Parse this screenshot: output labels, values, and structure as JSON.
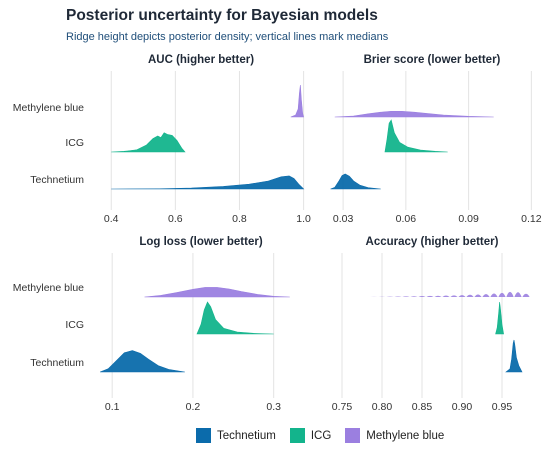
{
  "title": "Posterior uncertainty for Bayesian models",
  "subtitle": "Ridge height depicts posterior density; vertical lines mark medians",
  "legend": {
    "items": [
      {
        "label": "Technetium",
        "color": "#0b6bab"
      },
      {
        "label": "ICG",
        "color": "#13b48c"
      },
      {
        "label": "Methylene blue",
        "color": "#9b7fe0"
      }
    ]
  },
  "chart_data": [
    {
      "type": "ridgeline",
      "title": "AUC (higher better)",
      "xlim": [
        0.34,
        1.02
      ],
      "xticks": [
        0.4,
        0.6,
        0.8,
        1.0
      ],
      "xtick_labels": [
        "0.4",
        "0.6",
        "0.8",
        "1.0"
      ],
      "categories": [
        "Methylene blue",
        "ICG",
        "Technetium"
      ],
      "series": [
        {
          "name": "Methylene blue",
          "color": "#9b7fe0",
          "range": [
            0.96,
            1.0
          ],
          "medians": [
            0.99
          ],
          "density": [
            [
              0.96,
              0
            ],
            [
              0.975,
              0.06
            ],
            [
              0.983,
              0.25
            ],
            [
              0.987,
              0.75
            ],
            [
              0.99,
              1.0
            ],
            [
              0.993,
              0.55
            ],
            [
              0.997,
              0.12
            ],
            [
              1.0,
              0
            ]
          ]
        },
        {
          "name": "ICG",
          "color": "#13b48c",
          "range": [
            0.4,
            0.63
          ],
          "medians": [
            0.56
          ],
          "density": [
            [
              0.4,
              0
            ],
            [
              0.44,
              0.02
            ],
            [
              0.48,
              0.07
            ],
            [
              0.51,
              0.22
            ],
            [
              0.53,
              0.42
            ],
            [
              0.545,
              0.5
            ],
            [
              0.555,
              0.45
            ],
            [
              0.565,
              0.6
            ],
            [
              0.575,
              0.55
            ],
            [
              0.59,
              0.52
            ],
            [
              0.605,
              0.36
            ],
            [
              0.62,
              0.12
            ],
            [
              0.63,
              0
            ]
          ]
        },
        {
          "name": "Technetium",
          "color": "#0b6bab",
          "range": [
            0.4,
            1.0
          ],
          "medians": [
            0.94
          ],
          "density": [
            [
              0.4,
              0
            ],
            [
              0.55,
              0.005
            ],
            [
              0.65,
              0.03
            ],
            [
              0.75,
              0.08
            ],
            [
              0.83,
              0.15
            ],
            [
              0.89,
              0.25
            ],
            [
              0.93,
              0.38
            ],
            [
              0.955,
              0.41
            ],
            [
              0.97,
              0.33
            ],
            [
              0.985,
              0.15
            ],
            [
              1.0,
              0
            ]
          ]
        }
      ]
    },
    {
      "type": "ridgeline",
      "title": "Brier score (lower better)",
      "xlim": [
        0.018,
        0.127
      ],
      "xticks": [
        0.03,
        0.06,
        0.09,
        0.12
      ],
      "xtick_labels": [
        "0.03",
        "0.06",
        "0.09",
        "0.12"
      ],
      "categories": [
        "Methylene blue",
        "ICG",
        "Technetium"
      ],
      "series": [
        {
          "name": "Methylene blue",
          "color": "#9b7fe0",
          "range": [
            0.026,
            0.102
          ],
          "medians": [
            0.055
          ],
          "density": [
            [
              0.026,
              0
            ],
            [
              0.035,
              0.03
            ],
            [
              0.042,
              0.1
            ],
            [
              0.048,
              0.15
            ],
            [
              0.053,
              0.18
            ],
            [
              0.058,
              0.18
            ],
            [
              0.064,
              0.15
            ],
            [
              0.07,
              0.11
            ],
            [
              0.078,
              0.06
            ],
            [
              0.09,
              0.02
            ],
            [
              0.102,
              0
            ]
          ]
        },
        {
          "name": "ICG",
          "color": "#13b48c",
          "range": [
            0.05,
            0.08
          ],
          "medians": [
            0.053
          ],
          "density": [
            [
              0.05,
              0
            ],
            [
              0.051,
              0.4
            ],
            [
              0.052,
              0.9
            ],
            [
              0.053,
              1.0
            ],
            [
              0.0545,
              0.6
            ],
            [
              0.057,
              0.3
            ],
            [
              0.061,
              0.15
            ],
            [
              0.067,
              0.06
            ],
            [
              0.074,
              0.02
            ],
            [
              0.08,
              0
            ]
          ]
        },
        {
          "name": "Technetium",
          "color": "#0b6bab",
          "range": [
            0.024,
            0.048
          ],
          "medians": [
            0.031
          ],
          "density": [
            [
              0.024,
              0
            ],
            [
              0.026,
              0.05
            ],
            [
              0.028,
              0.25
            ],
            [
              0.0295,
              0.42
            ],
            [
              0.031,
              0.47
            ],
            [
              0.033,
              0.4
            ],
            [
              0.035,
              0.25
            ],
            [
              0.038,
              0.12
            ],
            [
              0.042,
              0.04
            ],
            [
              0.048,
              0
            ]
          ]
        }
      ]
    },
    {
      "type": "ridgeline",
      "title": "Log loss (lower better)",
      "xlim": [
        0.075,
        0.345
      ],
      "xticks": [
        0.1,
        0.2,
        0.3
      ],
      "xtick_labels": [
        "0.1",
        "0.2",
        "0.3"
      ],
      "categories": [
        "Methylene blue",
        "ICG",
        "Technetium"
      ],
      "series": [
        {
          "name": "Methylene blue",
          "color": "#9b7fe0",
          "range": [
            0.14,
            0.32
          ],
          "medians": [
            0.225
          ],
          "density": [
            [
              0.14,
              0
            ],
            [
              0.16,
              0.05
            ],
            [
              0.18,
              0.14
            ],
            [
              0.2,
              0.24
            ],
            [
              0.215,
              0.3
            ],
            [
              0.23,
              0.3
            ],
            [
              0.245,
              0.25
            ],
            [
              0.26,
              0.17
            ],
            [
              0.28,
              0.08
            ],
            [
              0.3,
              0.02
            ],
            [
              0.32,
              0
            ]
          ]
        },
        {
          "name": "ICG",
          "color": "#13b48c",
          "range": [
            0.205,
            0.3
          ],
          "medians": [
            0.22
          ],
          "density": [
            [
              0.205,
              0
            ],
            [
              0.21,
              0.3
            ],
            [
              0.214,
              0.75
            ],
            [
              0.218,
              1.0
            ],
            [
              0.222,
              0.85
            ],
            [
              0.228,
              0.45
            ],
            [
              0.238,
              0.18
            ],
            [
              0.255,
              0.06
            ],
            [
              0.275,
              0.02
            ],
            [
              0.3,
              0
            ]
          ]
        },
        {
          "name": "Technetium",
          "color": "#0b6bab",
          "range": [
            0.085,
            0.19
          ],
          "medians": [
            0.125
          ],
          "density": [
            [
              0.085,
              0
            ],
            [
              0.095,
              0.1
            ],
            [
              0.105,
              0.35
            ],
            [
              0.115,
              0.6
            ],
            [
              0.125,
              0.67
            ],
            [
              0.135,
              0.58
            ],
            [
              0.145,
              0.4
            ],
            [
              0.157,
              0.2
            ],
            [
              0.17,
              0.08
            ],
            [
              0.19,
              0
            ]
          ]
        }
      ]
    },
    {
      "type": "ridgeline",
      "title": "Accuracy (higher better)",
      "xlim": [
        0.72,
        1.005
      ],
      "xticks": [
        0.75,
        0.8,
        0.85,
        0.9,
        0.95
      ],
      "xtick_labels": [
        "0.75",
        "0.80",
        "0.85",
        "0.90",
        "0.95"
      ],
      "categories": [
        "Methylene blue",
        "ICG",
        "Technetium"
      ],
      "series": [
        {
          "name": "Methylene blue",
          "color": "#9b7fe0",
          "spikes": true,
          "medians": [
            0.96
          ],
          "spike_values": [
            0.79,
            0.8,
            0.81,
            0.82,
            0.83,
            0.84,
            0.85,
            0.86,
            0.87,
            0.88,
            0.89,
            0.9,
            0.91,
            0.92,
            0.93,
            0.94,
            0.95,
            0.96,
            0.97,
            0.98
          ],
          "spike_heights": [
            0.005,
            0.008,
            0.01,
            0.015,
            0.02,
            0.025,
            0.03,
            0.035,
            0.04,
            0.045,
            0.05,
            0.06,
            0.07,
            0.08,
            0.09,
            0.11,
            0.13,
            0.16,
            0.15,
            0.1
          ]
        },
        {
          "name": "ICG",
          "color": "#13b48c",
          "range": [
            0.942,
            0.952
          ],
          "medians": [
            0.947
          ],
          "density": [
            [
              0.942,
              0
            ],
            [
              0.944,
              0.2
            ],
            [
              0.946,
              0.7
            ],
            [
              0.947,
              1.0
            ],
            [
              0.948,
              0.8
            ],
            [
              0.95,
              0.3
            ],
            [
              0.952,
              0
            ]
          ]
        },
        {
          "name": "Technetium",
          "color": "#0b6bab",
          "range": [
            0.955,
            0.975
          ],
          "medians": [
            0.965
          ],
          "density": [
            [
              0.955,
              0
            ],
            [
              0.96,
              0.1
            ],
            [
              0.962,
              0.4
            ],
            [
              0.964,
              0.9
            ],
            [
              0.965,
              1.0
            ],
            [
              0.966,
              0.85
            ],
            [
              0.968,
              0.45
            ],
            [
              0.971,
              0.2
            ],
            [
              0.975,
              0
            ]
          ]
        }
      ]
    }
  ]
}
